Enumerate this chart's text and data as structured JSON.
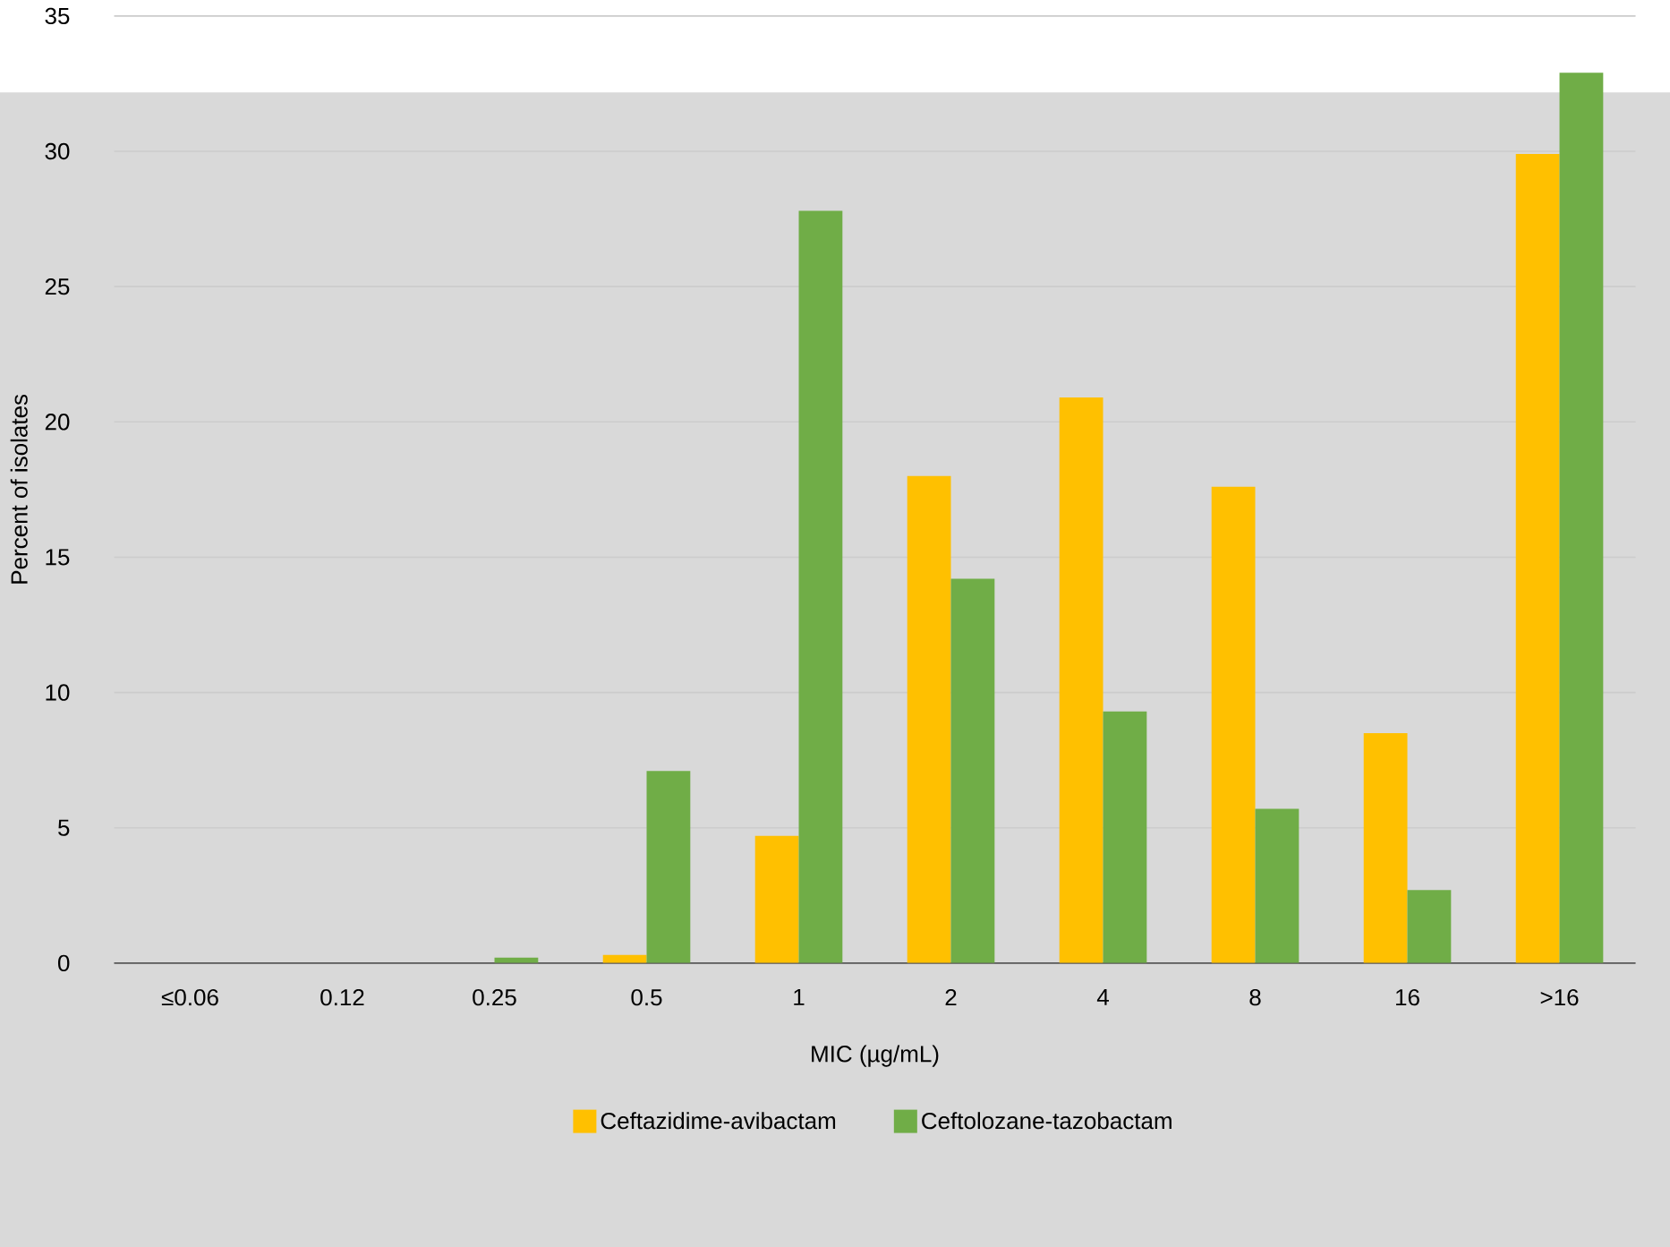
{
  "chart_data": {
    "type": "bar",
    "xlabel": "MIC (µg/mL)",
    "ylabel": "Percent of isolates",
    "categories": [
      "≤0.06",
      "0.12",
      "0.25",
      "0.5",
      "1",
      "2",
      "4",
      "8",
      "16",
      ">16"
    ],
    "series": [
      {
        "name": "Ceftazidime-avibactam",
        "color": "#ffc000",
        "values": [
          0,
          0,
          0,
          0.3,
          4.7,
          18.0,
          20.9,
          17.6,
          8.5,
          29.9
        ]
      },
      {
        "name": "Ceftolozane-tazobactam",
        "color": "#70ad47",
        "values": [
          0,
          0,
          0.2,
          7.1,
          27.8,
          14.2,
          9.3,
          5.7,
          2.7,
          32.9
        ]
      }
    ],
    "ylim": [
      0,
      35
    ],
    "yticks": [
      0,
      5,
      10,
      15,
      20,
      25,
      30,
      35
    ],
    "grid": "y",
    "legend": "bottom"
  }
}
